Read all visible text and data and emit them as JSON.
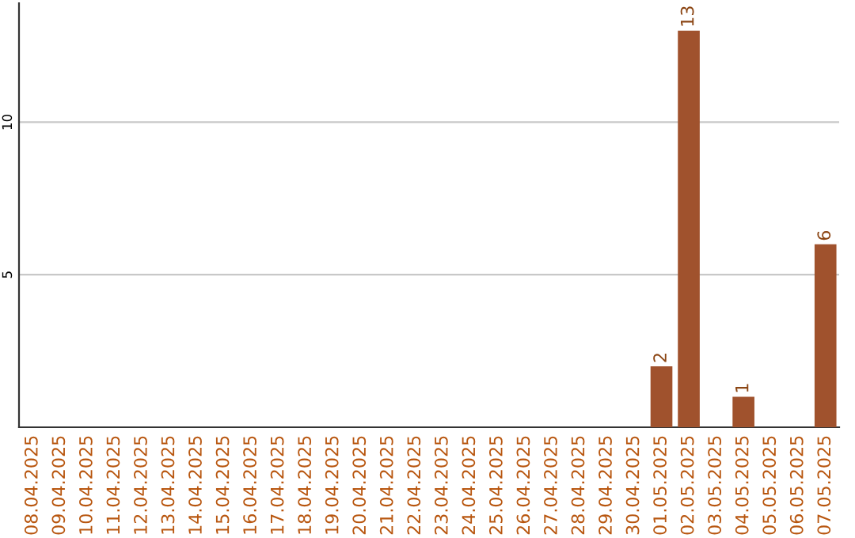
{
  "chart_data": {
    "type": "bar",
    "categories": [
      "08.04.2025",
      "09.04.2025",
      "10.04.2025",
      "11.04.2025",
      "12.04.2025",
      "13.04.2025",
      "14.04.2025",
      "15.04.2025",
      "16.04.2025",
      "17.04.2025",
      "18.04.2025",
      "19.04.2025",
      "20.04.2025",
      "21.04.2025",
      "22.04.2025",
      "23.04.2025",
      "24.04.2025",
      "25.04.2025",
      "26.04.2025",
      "27.04.2025",
      "28.04.2025",
      "29.04.2025",
      "30.04.2025",
      "01.05.2025",
      "02.05.2025",
      "03.05.2025",
      "04.05.2025",
      "05.05.2025",
      "06.05.2025",
      "07.05.2025"
    ],
    "values": [
      0,
      0,
      0,
      0,
      0,
      0,
      0,
      0,
      0,
      0,
      0,
      0,
      0,
      0,
      0,
      0,
      0,
      0,
      0,
      0,
      0,
      0,
      0,
      2,
      13,
      0,
      1,
      0,
      0,
      6
    ],
    "value_labels": [
      null,
      null,
      null,
      null,
      null,
      null,
      null,
      null,
      null,
      null,
      null,
      null,
      null,
      null,
      null,
      null,
      null,
      null,
      null,
      null,
      null,
      null,
      null,
      "2",
      "13",
      null,
      "1",
      null,
      null,
      "6"
    ],
    "color": "#a0522d",
    "ylim": [
      0,
      13.9
    ],
    "yticks": [
      5,
      10
    ],
    "grid": "y"
  }
}
